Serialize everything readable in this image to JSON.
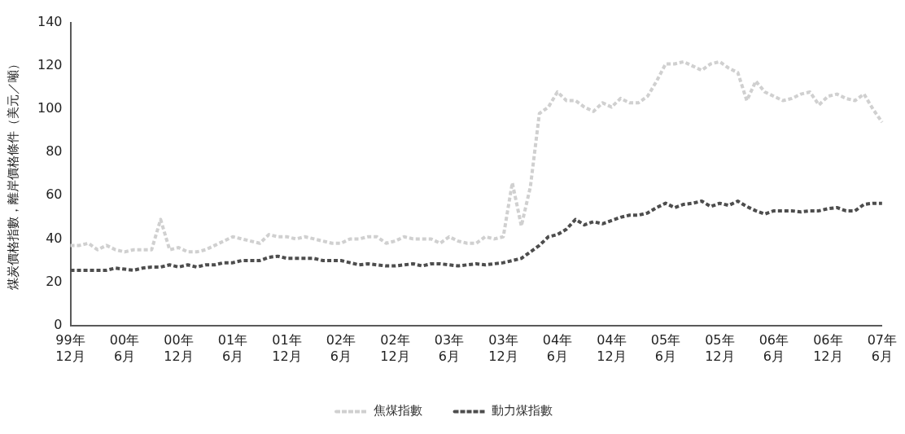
{
  "chart_data": {
    "type": "line",
    "ylabel": "煤炭價格指數，離岸價格條件（美元／噸）",
    "categories": [
      "99年\n12月",
      null,
      null,
      null,
      null,
      null,
      "00年\n6月",
      null,
      null,
      null,
      null,
      null,
      "00年\n12月",
      null,
      null,
      null,
      null,
      null,
      "01年\n6月",
      null,
      null,
      null,
      null,
      null,
      "01年\n12月",
      null,
      null,
      null,
      null,
      null,
      "02年\n6月",
      null,
      null,
      null,
      null,
      null,
      "02年\n12月",
      null,
      null,
      null,
      null,
      null,
      "03年\n6月",
      null,
      null,
      null,
      null,
      null,
      "03年\n12月",
      null,
      null,
      null,
      null,
      null,
      "04年\n6月",
      null,
      null,
      null,
      null,
      null,
      "04年\n12月",
      null,
      null,
      null,
      null,
      null,
      "05年\n6月",
      null,
      null,
      null,
      null,
      null,
      "05年\n12月",
      null,
      null,
      null,
      null,
      null,
      "06年\n6月",
      null,
      null,
      null,
      null,
      null,
      "06年\n12月",
      null,
      null,
      null,
      null,
      null,
      "07年\n6月"
    ],
    "series": [
      {
        "name": "焦煤指數",
        "color": "#d0d0d0",
        "values": [
          37,
          37,
          38,
          35,
          37,
          35,
          34,
          35,
          35,
          35,
          49,
          35,
          36,
          34,
          34,
          35,
          37,
          39,
          41,
          40,
          39,
          38,
          42,
          41,
          41,
          40,
          41,
          40,
          39,
          38,
          38,
          40,
          40,
          41,
          41,
          38,
          39,
          41,
          40,
          40,
          40,
          38,
          41,
          39,
          38,
          38,
          41,
          40,
          41,
          66,
          46,
          64,
          98,
          101,
          108,
          104,
          104,
          101,
          99,
          103,
          101,
          105,
          103,
          103,
          106,
          113,
          121,
          121,
          122,
          120,
          118,
          121,
          122,
          119,
          117,
          104,
          113,
          108,
          106,
          104,
          105,
          107,
          108,
          102,
          106,
          107,
          105,
          104,
          107,
          100,
          94
        ]
      },
      {
        "name": "動力煤指數",
        "color": "#4d4d4d",
        "values": [
          25.5,
          25.5,
          25.5,
          25.5,
          25.5,
          26.5,
          26,
          25.5,
          26.5,
          27,
          27,
          28,
          27,
          28,
          27,
          28,
          28,
          29,
          29,
          30,
          30,
          30,
          31.5,
          32,
          31,
          31,
          31,
          31,
          30,
          30,
          30,
          29,
          28,
          28.5,
          28,
          27.5,
          27.5,
          28,
          28.5,
          27.5,
          28.5,
          28.5,
          28,
          27.5,
          28,
          28.5,
          28,
          28.5,
          29,
          30,
          31,
          34,
          37,
          41,
          42,
          44.5,
          49,
          46.5,
          48,
          47,
          48.5,
          50,
          51,
          51,
          52,
          54.5,
          56.5,
          54.5,
          56,
          56.5,
          57.5,
          55,
          56.5,
          55.5,
          57.5,
          55,
          53,
          51.5,
          53,
          53,
          53,
          52.5,
          53,
          53,
          54,
          54.5,
          53,
          53,
          56,
          56.5,
          56.5
        ]
      }
    ],
    "ylim": [
      0,
      140
    ],
    "yticks": [
      0,
      20,
      40,
      60,
      80,
      100,
      120,
      140
    ],
    "grid": false,
    "legend": "bottom",
    "line_style": "dashed",
    "marker": "none"
  }
}
